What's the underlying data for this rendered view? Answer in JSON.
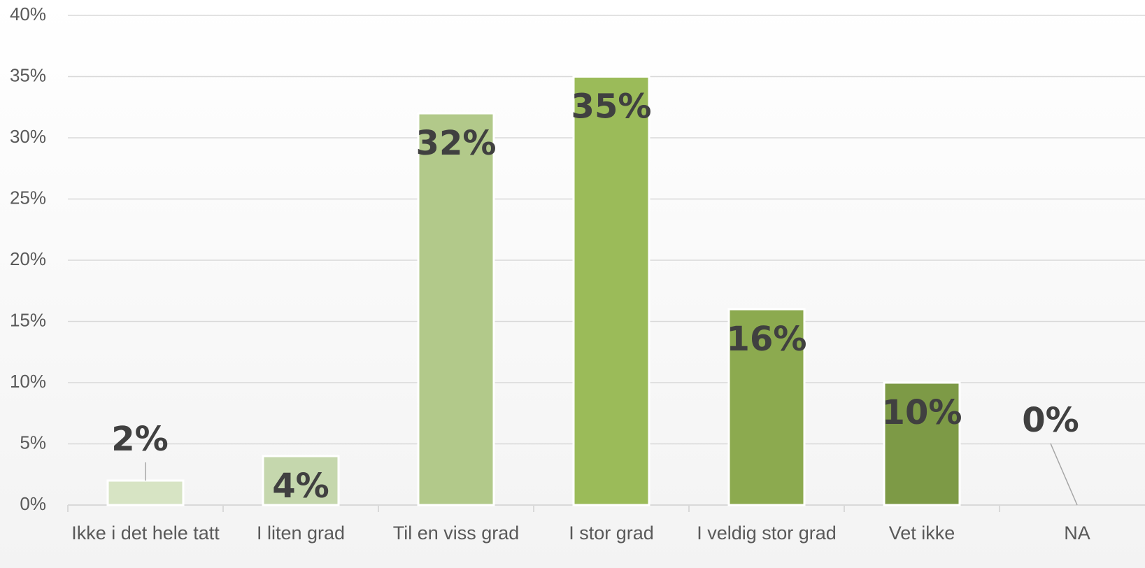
{
  "chart_data": {
    "type": "bar",
    "categories": [
      "Ikke i det hele tatt",
      "I liten grad",
      "Til en viss grad",
      "I stor grad",
      "I veldig stor grad",
      "Vet ikke",
      "NA"
    ],
    "values": [
      2,
      4,
      32,
      35,
      16,
      10,
      0
    ],
    "value_labels": [
      "2%",
      "4%",
      "32%",
      "35%",
      "16%",
      "10%",
      "0%"
    ],
    "colors": [
      "#d7e4c4",
      "#c5d7ad",
      "#b2c98a",
      "#9bbb59",
      "#8caa4f",
      "#7d9a46",
      "#6e8a3c"
    ],
    "ylim": [
      0,
      40
    ],
    "yticks": [
      {
        "value": 0,
        "label": "0%"
      },
      {
        "value": 5,
        "label": "5%"
      },
      {
        "value": 10,
        "label": "10%"
      },
      {
        "value": 15,
        "label": "15%"
      },
      {
        "value": 20,
        "label": "20%"
      },
      {
        "value": 25,
        "label": "25%"
      },
      {
        "value": 30,
        "label": "30%"
      },
      {
        "value": 35,
        "label": "35%"
      },
      {
        "value": 40,
        "label": "40%"
      }
    ],
    "grid": true
  }
}
